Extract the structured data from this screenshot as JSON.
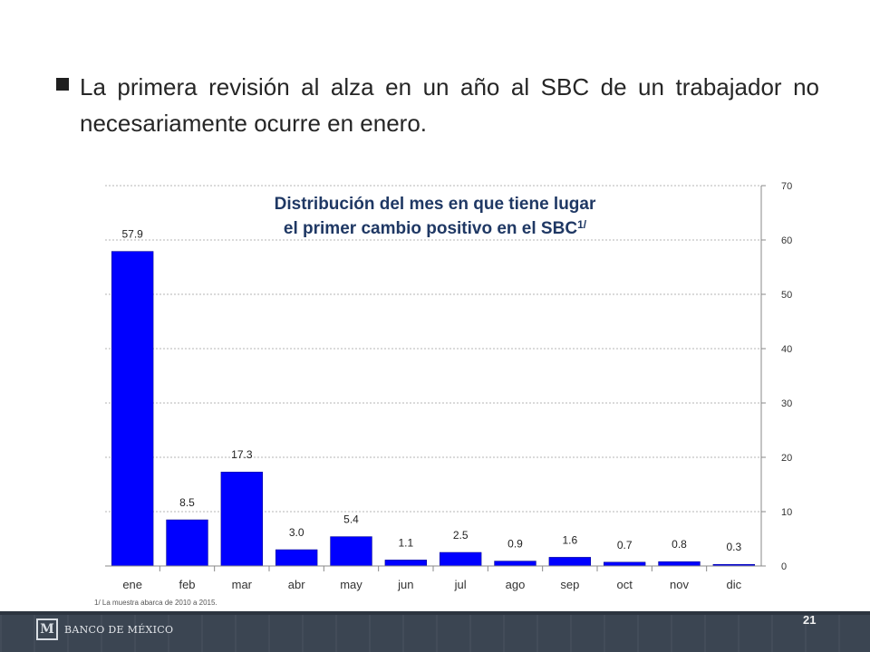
{
  "bullet": {
    "text": "La primera revisión al alza en un año al SBC de un trabajador no necesariamente ocurre en enero."
  },
  "chart_data": {
    "type": "bar",
    "title_line1": "Distribución del mes en que tiene lugar",
    "title_line2": "el primer cambio positivo en el SBC",
    "title_superscript": "1/",
    "categories": [
      "ene",
      "feb",
      "mar",
      "abr",
      "may",
      "jun",
      "jul",
      "ago",
      "sep",
      "oct",
      "nov",
      "dic"
    ],
    "values": [
      57.9,
      8.5,
      17.3,
      3.0,
      5.4,
      1.1,
      2.5,
      0.9,
      1.6,
      0.7,
      0.8,
      0.3
    ],
    "value_labels": [
      "57.9",
      "8.5",
      "17.3",
      "3.0",
      "5.4",
      "1.1",
      "2.5",
      "0.9",
      "1.6",
      "0.7",
      "0.8",
      "0.3"
    ],
    "ylim": [
      0,
      70
    ],
    "yticks": [
      0,
      10,
      20,
      30,
      40,
      50,
      60,
      70
    ],
    "y_axis_side": "right",
    "grid": true,
    "bar_color": "#0000ff"
  },
  "footnote": "1/ La muestra abarca de 2010 a 2015.",
  "footer": {
    "logo_text": "BANCO DE MÉXICO",
    "page_number": "21"
  }
}
